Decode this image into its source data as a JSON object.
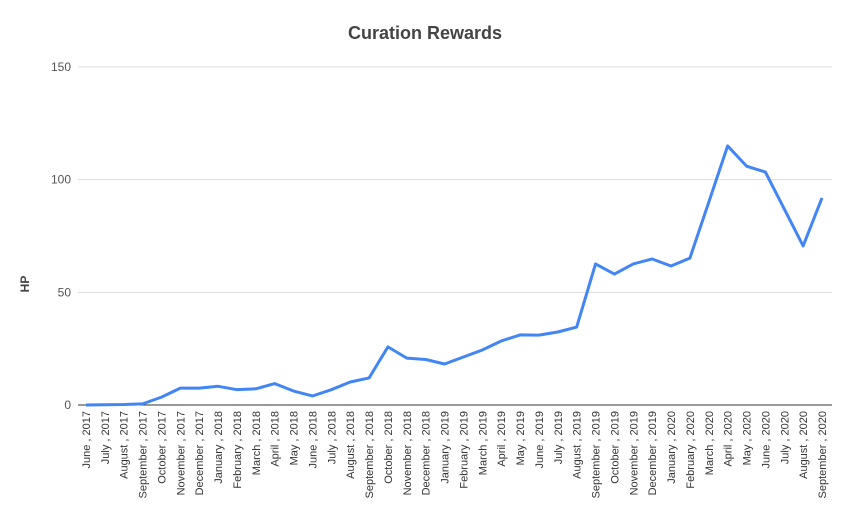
{
  "chart_data": {
    "type": "line",
    "title": "Curation Rewards",
    "y_label": "HP",
    "categories": [
      "June , 2017",
      "July , 2017",
      "August , 2017",
      "September , 2017",
      "October , 2017",
      "November , 2017",
      "December , 2017",
      "January , 2018",
      "February , 2018",
      "March , 2018",
      "April , 2018",
      "May , 2018",
      "June , 2018",
      "July , 2018",
      "August , 2018",
      "September , 2018",
      "October , 2018",
      "November , 2018",
      "December , 2018",
      "January , 2019",
      "February , 2019",
      "March , 2019",
      "April , 2019",
      "May , 2019",
      "June , 2019",
      "July , 2019",
      "August , 2019",
      "September , 2019",
      "October , 2019",
      "November , 2019",
      "December , 2019",
      "January , 2020",
      "February , 2020",
      "March , 2020",
      "April , 2020",
      "May , 2020",
      "June , 2020",
      "July , 2020",
      "August , 2020",
      "September , 2020"
    ],
    "series": [
      {
        "name": "HP",
        "color": "#4285f4",
        "values": [
          0,
          0.1,
          0.2,
          0.5,
          3.5,
          7.5,
          7.5,
          8.3,
          6.8,
          7.2,
          9.5,
          6.2,
          4,
          6.8,
          10.2,
          12,
          25.8,
          20.8,
          20.2,
          18.2,
          21.3,
          24.4,
          28.4,
          31.1,
          31,
          32.4,
          34.6,
          62.6,
          58.1,
          62.6,
          64.8,
          61.7,
          65.2,
          90,
          115,
          106,
          103.4,
          87,
          70.6,
          91.9
        ]
      }
    ],
    "ylim": [
      0,
      150
    ],
    "yticks": [
      0,
      50,
      100,
      150
    ],
    "grid": true
  }
}
